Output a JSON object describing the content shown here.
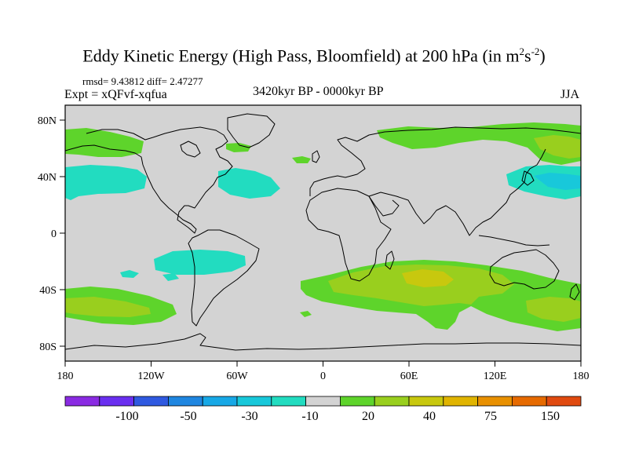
{
  "title_main": "Eddy Kinetic Energy (High Pass, Bloomfield) at 200 hPa (in m",
  "title_sup1": "2",
  "title_mid": "s",
  "title_sup2": "-2",
  "title_end": ")",
  "stats": "rmsd= 9.43812  diff= 2.47277",
  "expt": "Expt = xQFvf-xqfua",
  "period": "3420kyr BP - 0000kyr BP",
  "season": "JJA",
  "lat_labels": [
    "80N",
    "40N",
    "0",
    "40S",
    "80S"
  ],
  "lon_labels": [
    "180",
    "120W",
    "60W",
    "0",
    "60E",
    "120E",
    "180"
  ],
  "colorbar": {
    "colors": [
      "#8a2be2",
      "#6a2ff0",
      "#2f59e0",
      "#1f86e0",
      "#17a8e6",
      "#18c8da",
      "#22dcc0",
      "#d3d3d3",
      "#5ed42b",
      "#99cf1e",
      "#c8c80e",
      "#e0b400",
      "#e89000",
      "#e66a00",
      "#e04a10"
    ],
    "labels": [
      "-100",
      "-50",
      "-30",
      "-10",
      "20",
      "40",
      "75",
      "150"
    ]
  }
}
